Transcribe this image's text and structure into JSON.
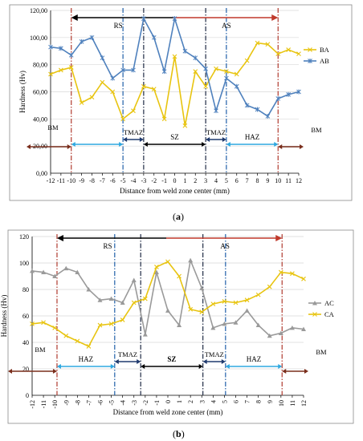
{
  "captions": {
    "a": {
      "open": "(",
      "letter": "a",
      "close": ")"
    },
    "b": {
      "open": "(",
      "letter": "b",
      "close": ")"
    }
  },
  "colors": {
    "yellow": "#E8C410",
    "blue": "#4F81BD",
    "gray": "#9A9A9A",
    "red_dash": "#B03A2E",
    "blue_dash": "#1F5FA8",
    "dark_dash": "#1F2A44",
    "maroon": "#7A2E1C",
    "cyan": "#2EA8E0",
    "navy": "#1F3A6E",
    "black": "#000000"
  },
  "chart_data": [
    {
      "type": "line",
      "panel": "a",
      "xlabel": "Distance from weld zone center (mm)",
      "ylabel": "Hardness (Hv)",
      "x": [
        -12,
        -11,
        -10,
        -9,
        -8,
        -7,
        -6,
        -5,
        -4,
        -3,
        -2,
        -1,
        0,
        1,
        2,
        3,
        4,
        5,
        6,
        7,
        8,
        9,
        10,
        11,
        12
      ],
      "xlim": [
        -12,
        12
      ],
      "ylim": [
        0,
        120
      ],
      "yticks": [
        "0,00",
        "20,00",
        "40,00",
        "60,00",
        "80,00",
        "100,00",
        "120,00"
      ],
      "series": [
        {
          "name": "BA",
          "color": "#E8C410",
          "marker": "x",
          "values": [
            73,
            76,
            78,
            52,
            56,
            67,
            60,
            40,
            46,
            64,
            62,
            40,
            86,
            35,
            75,
            64,
            77,
            75,
            73,
            83,
            96,
            95,
            88,
            91,
            88
          ]
        },
        {
          "name": "AB",
          "color": "#4F81BD",
          "marker": "star",
          "values": [
            93,
            92,
            87,
            97,
            100,
            85,
            70,
            76,
            76,
            114,
            100,
            75,
            114,
            90,
            85,
            77,
            46,
            70,
            64,
            50,
            47,
            42,
            55,
            58,
            60
          ]
        }
      ],
      "legend_position": "right",
      "zone_labels": {
        "rs": "RS",
        "as": "AS",
        "bm_left": "BM",
        "bm_right": "BM",
        "tmaz_left": "TMAZ",
        "tmaz_right": "TMAZ",
        "sz": "SZ",
        "haz": "HAZ"
      }
    },
    {
      "type": "line",
      "panel": "b",
      "xlabel": "Distance from weld zone center (mm)",
      "ylabel": "Hardness (Hv)",
      "x": [
        -12,
        -11,
        -10,
        -9,
        -8,
        -7,
        -6,
        -5,
        -4,
        -3,
        -2,
        -1,
        0,
        1,
        2,
        3,
        4,
        5,
        6,
        7,
        8,
        9,
        10,
        11,
        12
      ],
      "xlim": [
        -12,
        12
      ],
      "ylim": [
        0,
        120
      ],
      "yticks": [
        "0",
        "20",
        "40",
        "60",
        "80",
        "100",
        "120"
      ],
      "series": [
        {
          "name": "AC",
          "color": "#9A9A9A",
          "marker": "triangle",
          "values": [
            94,
            93,
            90,
            96,
            93,
            80,
            72,
            73,
            70,
            87,
            46,
            93,
            64,
            53,
            102,
            81,
            51,
            54,
            55,
            64,
            53,
            45,
            47,
            51,
            50
          ]
        },
        {
          "name": "CA",
          "color": "#E8C410",
          "marker": "x",
          "values": [
            54,
            55,
            51,
            45,
            41,
            37,
            53,
            54,
            57,
            70,
            73,
            97,
            101,
            90,
            65,
            63,
            69,
            71,
            70,
            72,
            76,
            82,
            93,
            92,
            88
          ]
        }
      ],
      "legend_position": "right",
      "zone_labels": {
        "rs": "RS",
        "as": "AS",
        "bm_left": "BM",
        "bm_right": "BM",
        "tmaz_left": "TMAZ",
        "tmaz_right": "TMAZ",
        "sz": "SZ",
        "haz_left": "HAZ",
        "haz_right": "HAZ"
      }
    }
  ]
}
